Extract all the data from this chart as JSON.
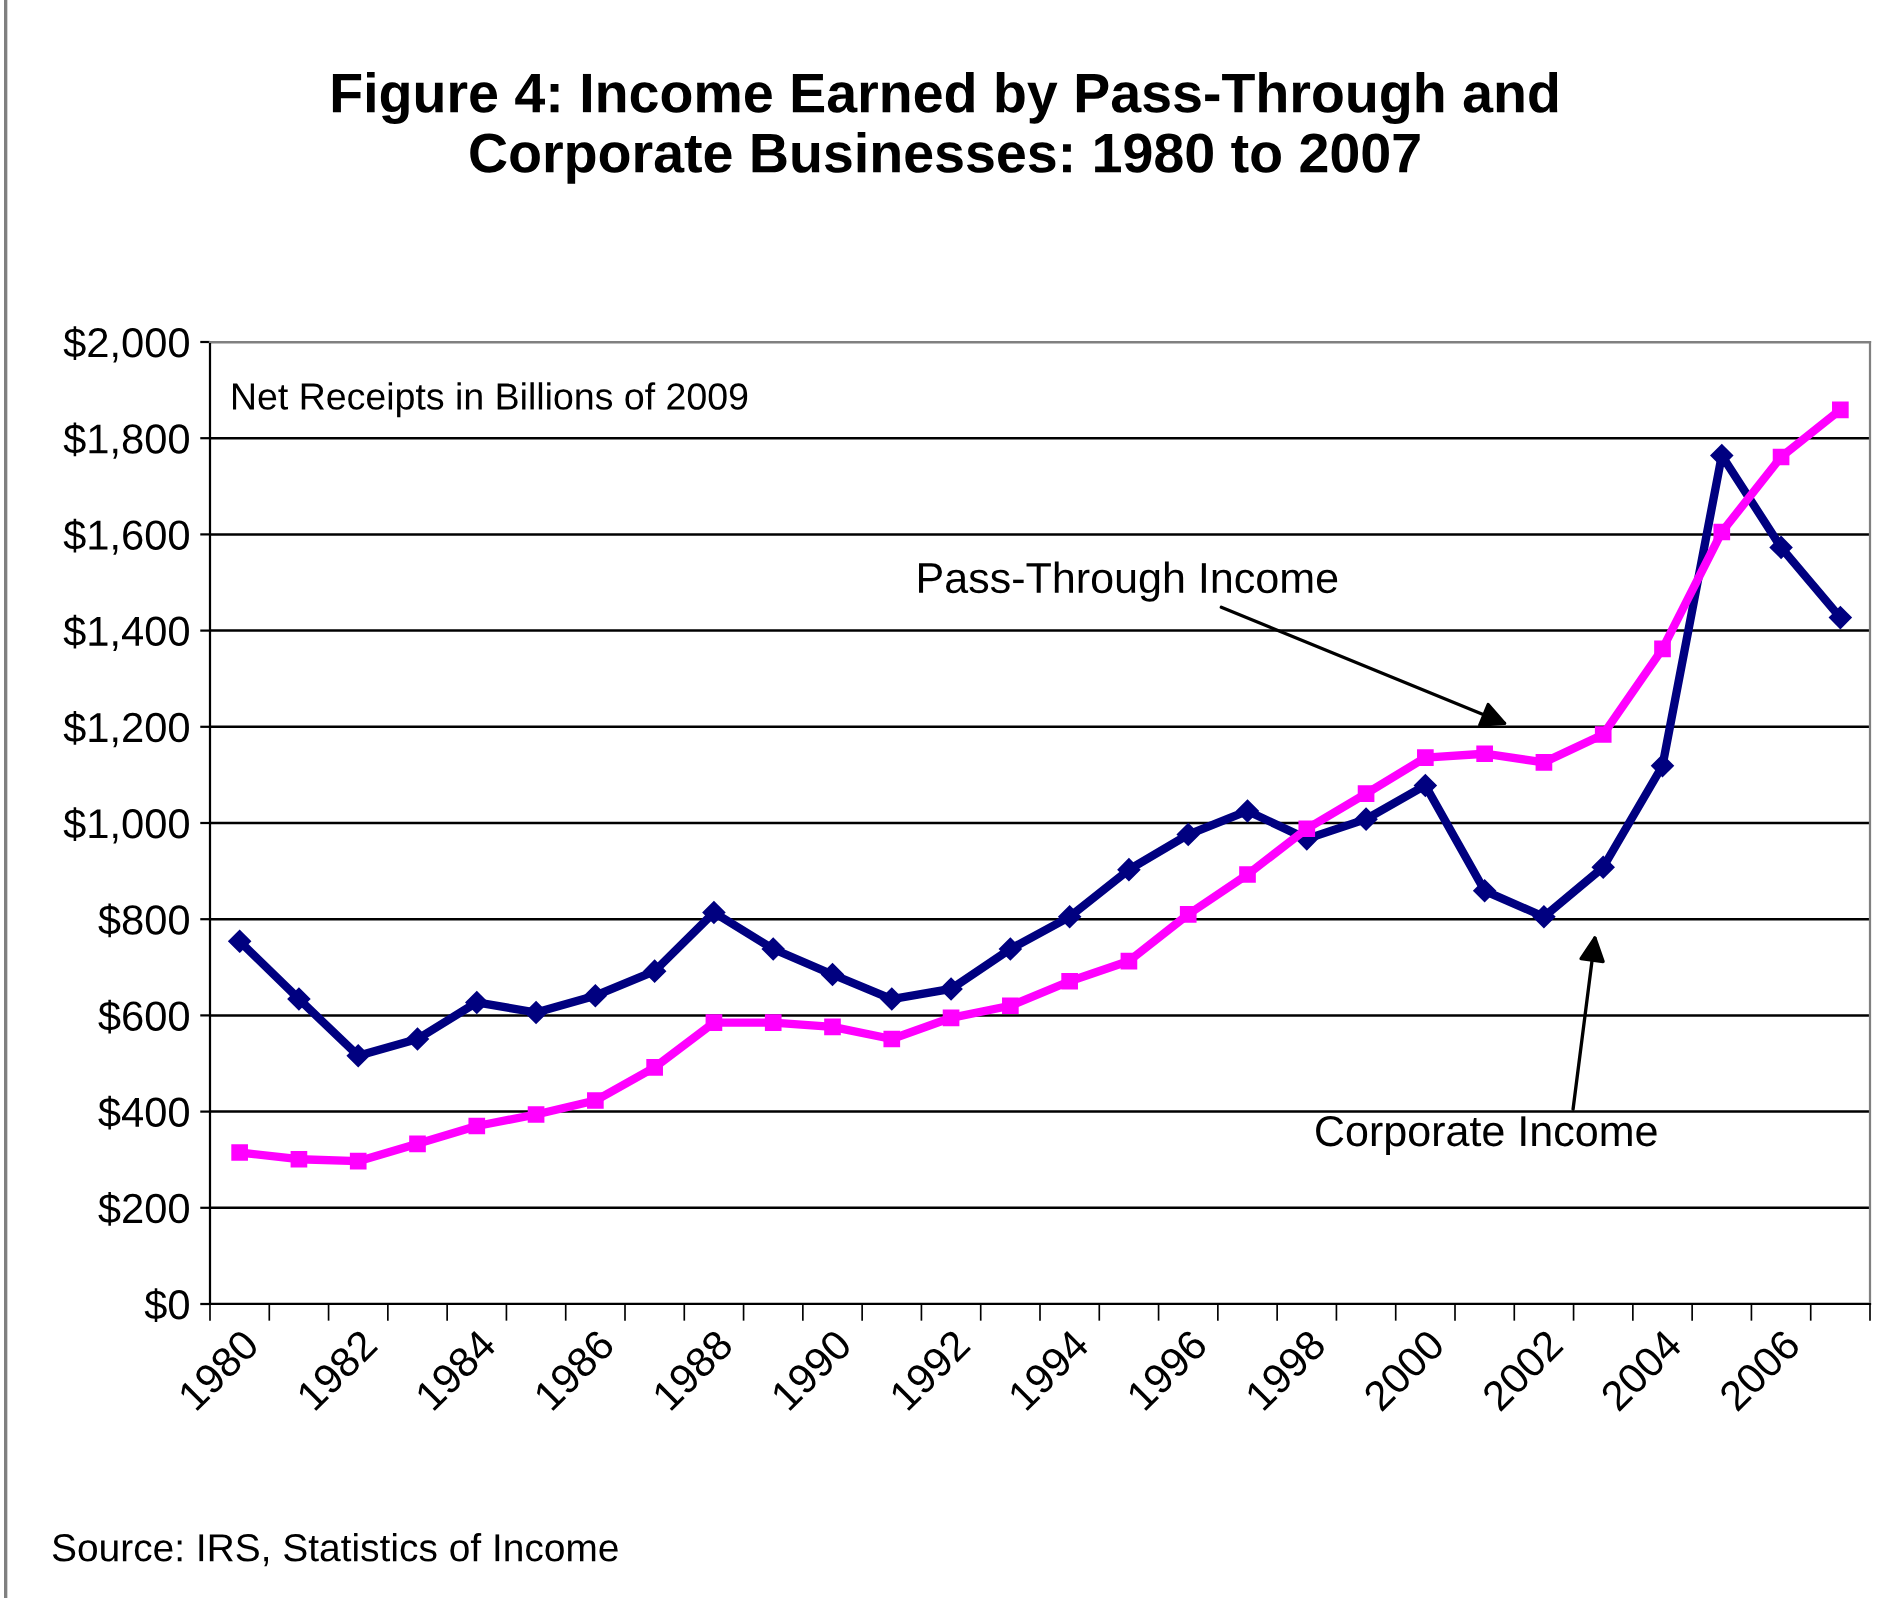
{
  "chart_data": {
    "type": "line",
    "title": "Figure 4: Income Earned by Pass-Through and\nCorporate Businesses: 1980 to 2007",
    "categories": [
      "1980",
      null,
      "1982",
      null,
      "1984",
      null,
      "1986",
      null,
      "1988",
      null,
      "1990",
      null,
      "1992",
      null,
      "1994",
      null,
      "1996",
      null,
      "1998",
      null,
      "2000",
      null,
      "2002",
      null,
      "2004",
      null,
      "2006",
      null
    ],
    "series": [
      {
        "color": "#000080",
        "marker": "diamond",
        "values": [
          754,
          634,
          516,
          551,
          627,
          606,
          641,
          692,
          814,
          738,
          685,
          634,
          655,
          738,
          805,
          903,
          976,
          1025,
          967,
          1008,
          1078,
          859,
          805,
          908,
          1119,
          1764,
          1573,
          1427
        ]
      },
      {
        "color": "#ff00ff",
        "marker": "square",
        "values": [
          315,
          301,
          297,
          333,
          370,
          394,
          423,
          492,
          585,
          585,
          576,
          551,
          595,
          620,
          671,
          713,
          810,
          893,
          988,
          1061,
          1136,
          1144,
          1126,
          1184,
          1362,
          1605,
          1761,
          1859
        ]
      }
    ],
    "ylim": [
      0,
      2000
    ],
    "yticks": [
      {
        "value": 0,
        "label": "$0"
      },
      {
        "value": 200,
        "label": "$200"
      },
      {
        "value": 400,
        "label": "$400"
      },
      {
        "value": 600,
        "label": "$600"
      },
      {
        "value": 800,
        "label": "$800"
      },
      {
        "value": 1000,
        "label": "$1,000"
      },
      {
        "value": 1200,
        "label": "$1,200"
      },
      {
        "value": 1400,
        "label": "$1,400"
      },
      {
        "value": 1600,
        "label": "$1,600"
      },
      {
        "value": 1800,
        "label": "$1,800"
      },
      {
        "value": 2000,
        "label": "$2,000"
      }
    ],
    "grid": "y",
    "line_style": "solid",
    "annotations": [
      "Net Receipts in Billions of 2009",
      "Pass-Through Income",
      "Corporate Income",
      "Source: IRS, Statistics of Income"
    ]
  }
}
